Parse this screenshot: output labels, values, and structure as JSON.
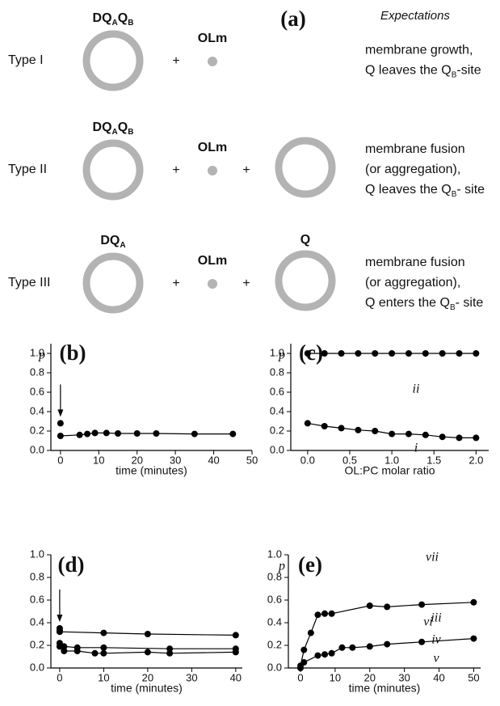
{
  "diagram": {
    "label": "(a)",
    "heading": "Expectations",
    "rows": [
      {
        "type": "Type I",
        "left": [
          "DQ",
          "A",
          "Q",
          "B"
        ],
        "olm": [
          "OLm"
        ],
        "plus": [
          "+"
        ],
        "expectation": [
          [
            "membrane growth,"
          ],
          [
            "Q leaves the Q",
            "B",
            "-site"
          ]
        ]
      },
      {
        "type": "Type II",
        "left": [
          "DQ",
          "A",
          "Q",
          "B"
        ],
        "olm": [
          "OLm"
        ],
        "plus": [
          "+",
          "+"
        ],
        "expectation": [
          [
            "membrane fusion"
          ],
          [
            "(or aggregation),"
          ],
          [
            "Q leaves the Q",
            "B",
            "- site"
          ]
        ]
      },
      {
        "type": "Type III",
        "left": [
          "DQ",
          "A"
        ],
        "olm": [
          "OLm"
        ],
        "plus": [
          "+",
          "+"
        ],
        "right": [
          "Q"
        ],
        "expectation": [
          [
            "membrane fusion"
          ],
          [
            "(or aggregation),"
          ],
          [
            "Q enters the Q",
            "B",
            "- site"
          ]
        ]
      }
    ]
  },
  "chart_data": [
    {
      "type": "line",
      "label": "(b)",
      "ylabel": "p",
      "xlabel": "time (minutes)",
      "color": "#000000",
      "xlim": [
        -2.5,
        50
      ],
      "xticks": [
        0,
        10,
        20,
        30,
        40,
        50
      ],
      "ylim": [
        0,
        1.1
      ],
      "yticks": [
        {
          "value": 0,
          "label": "0.0"
        },
        0.2,
        0.4,
        0.6,
        0.8,
        {
          "value": 1,
          "label": "1.0"
        }
      ],
      "series": [
        {
          "markers_only": true,
          "arrow": true,
          "x": [
            0
          ],
          "values": [
            0.28
          ]
        },
        {
          "x": [
            0,
            5,
            7,
            9,
            12,
            15,
            20,
            25,
            35,
            45
          ],
          "values": [
            0.15,
            0.16,
            0.17,
            0.18,
            0.18,
            0.175,
            0.175,
            0.175,
            0.17,
            0.17
          ]
        }
      ]
    },
    {
      "type": "line",
      "label": "(c)",
      "ylabel": "p",
      "xlabel": "OL:PC molar ratio",
      "color": "#000000",
      "xlim": [
        -0.2,
        2.15
      ],
      "xticks": [
        {
          "value": 0,
          "label": "0.0"
        },
        0.5,
        {
          "value": 1,
          "label": "1.0"
        },
        1.5,
        {
          "value": 2,
          "label": "2.0"
        }
      ],
      "ylim": [
        0,
        1.1
      ],
      "yticks": [
        {
          "value": 0,
          "label": "0.0"
        },
        0.2,
        0.4,
        0.6,
        0.8,
        {
          "value": 1,
          "label": "1.0"
        }
      ],
      "series": [
        {
          "name": "ii",
          "x": [
            0,
            0.2,
            0.4,
            0.6,
            0.8,
            1.0,
            1.2,
            1.4,
            1.6,
            1.8,
            2.0
          ],
          "values": [
            1,
            1,
            1,
            1,
            1,
            1,
            1,
            1,
            1,
            1,
            1
          ]
        },
        {
          "name": "i",
          "x": [
            0,
            0.2,
            0.4,
            0.6,
            0.8,
            1.0,
            1.2,
            1.4,
            1.6,
            1.8,
            2.0
          ],
          "values": [
            0.28,
            0.25,
            0.23,
            0.21,
            0.2,
            0.17,
            0.17,
            0.16,
            0.14,
            0.13,
            0.13
          ]
        }
      ]
    },
    {
      "type": "line",
      "label": "(d)",
      "xlabel": "time (minutes)",
      "color": "#000000",
      "xlim": [
        -2,
        41.5
      ],
      "xticks": [
        0,
        10,
        20,
        30,
        40
      ],
      "ylim": [
        0,
        1
      ],
      "yticks": [
        {
          "value": 0,
          "label": "0.0"
        },
        0.2,
        0.4,
        0.6,
        0.8,
        {
          "value": 1,
          "label": "1.0"
        }
      ],
      "series": [
        {
          "markers_only": true,
          "arrow": true,
          "x": [
            0,
            0
          ],
          "values": [
            0.35,
            0.33
          ]
        },
        {
          "name": "iii",
          "x": [
            0,
            10,
            20,
            40
          ],
          "values": [
            0.32,
            0.31,
            0.3,
            0.29
          ]
        },
        {
          "name": "iv",
          "x": [
            0,
            1,
            4,
            10,
            25,
            40
          ],
          "values": [
            0.22,
            0.19,
            0.18,
            0.18,
            0.17,
            0.17
          ]
        },
        {
          "name": "v",
          "x": [
            0,
            1,
            4,
            8,
            10,
            20,
            25,
            40
          ],
          "values": [
            0.19,
            0.15,
            0.15,
            0.13,
            0.13,
            0.14,
            0.13,
            0.14
          ]
        }
      ]
    },
    {
      "type": "line",
      "label": "(e)",
      "ylabel": "p",
      "xlabel": "time (minutes)",
      "color": "#000000",
      "xlim": [
        -3.5,
        52
      ],
      "xticks": [
        0,
        10,
        20,
        30,
        40,
        50
      ],
      "ylim": [
        0,
        1
      ],
      "yticks": [
        {
          "value": 0,
          "label": "0.0"
        },
        0.2,
        0.4,
        0.6,
        0.8,
        {
          "value": 1,
          "label": "1.0"
        }
      ],
      "series": [
        {
          "name": "vii",
          "x": [
            0,
            1,
            3,
            5,
            7,
            9,
            20,
            25,
            35,
            50
          ],
          "values": [
            0.02,
            0.16,
            0.31,
            0.47,
            0.48,
            0.48,
            0.55,
            0.54,
            0.56,
            0.58
          ]
        },
        {
          "name": "vi",
          "x": [
            0,
            1,
            5,
            7,
            9,
            12,
            15,
            20,
            25,
            35,
            50
          ],
          "values": [
            0,
            0.05,
            0.11,
            0.12,
            0.13,
            0.18,
            0.18,
            0.19,
            0.21,
            0.23,
            0.26
          ]
        }
      ]
    }
  ]
}
